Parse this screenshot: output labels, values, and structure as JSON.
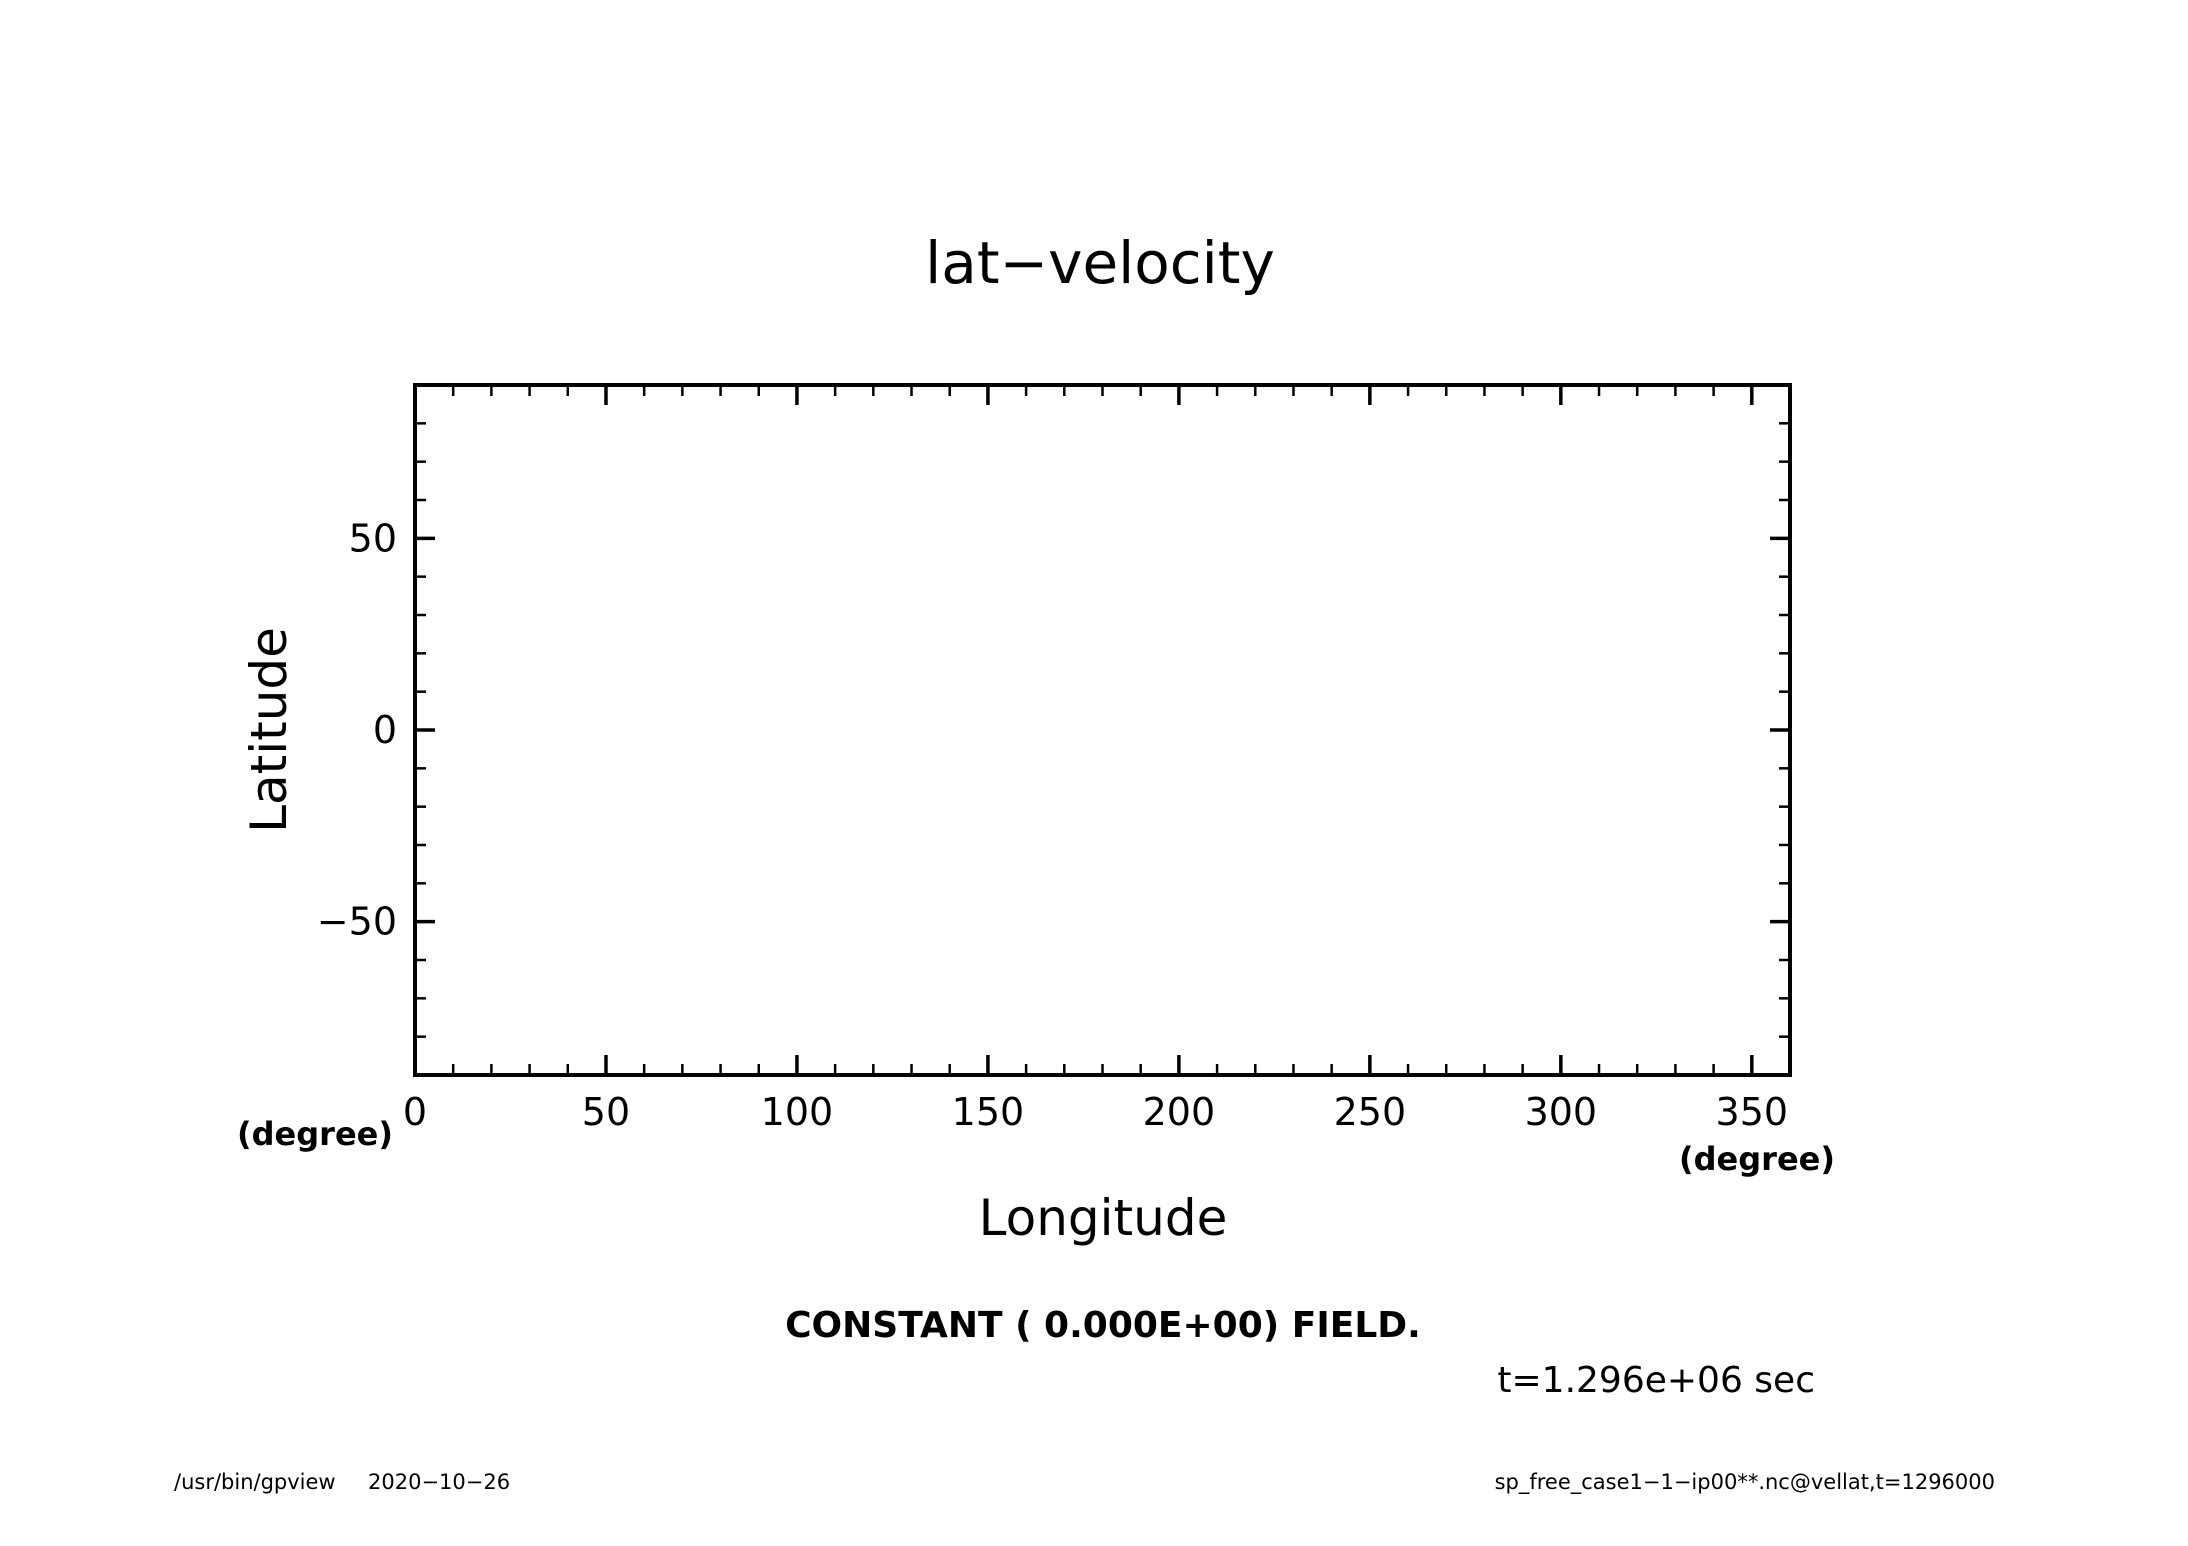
{
  "colors": {
    "background": "#ffffff",
    "axis": "#000000",
    "text": "#000000"
  },
  "chart_data": {
    "type": "heatmap",
    "title": "lat−velocity",
    "xlabel": "Longitude",
    "ylabel": "Latitude",
    "x_unit": "(degree)",
    "y_unit": "(degree)",
    "xlim": [
      0,
      360
    ],
    "ylim": [
      -90,
      90
    ],
    "x_major_ticks": [
      0,
      50,
      100,
      150,
      200,
      250,
      300,
      350
    ],
    "x_tick_labels": [
      "0",
      "50",
      "100",
      "150",
      "200",
      "250",
      "300",
      "350"
    ],
    "x_minor_step": 10,
    "y_major_ticks": [
      50,
      0,
      -50
    ],
    "y_tick_labels": [
      "50",
      "0",
      "−50"
    ],
    "y_minor_step": 10,
    "grid": false,
    "field_message": "CONSTANT ( 0.000E+00) FIELD.",
    "time_label": "t=1.296e+06 sec",
    "values": []
  },
  "footer": {
    "program": "/usr/bin/gpview",
    "date": "2020−10−26",
    "source": "sp_free_case1−1−ip00**.nc@vellat,t=1296000"
  }
}
